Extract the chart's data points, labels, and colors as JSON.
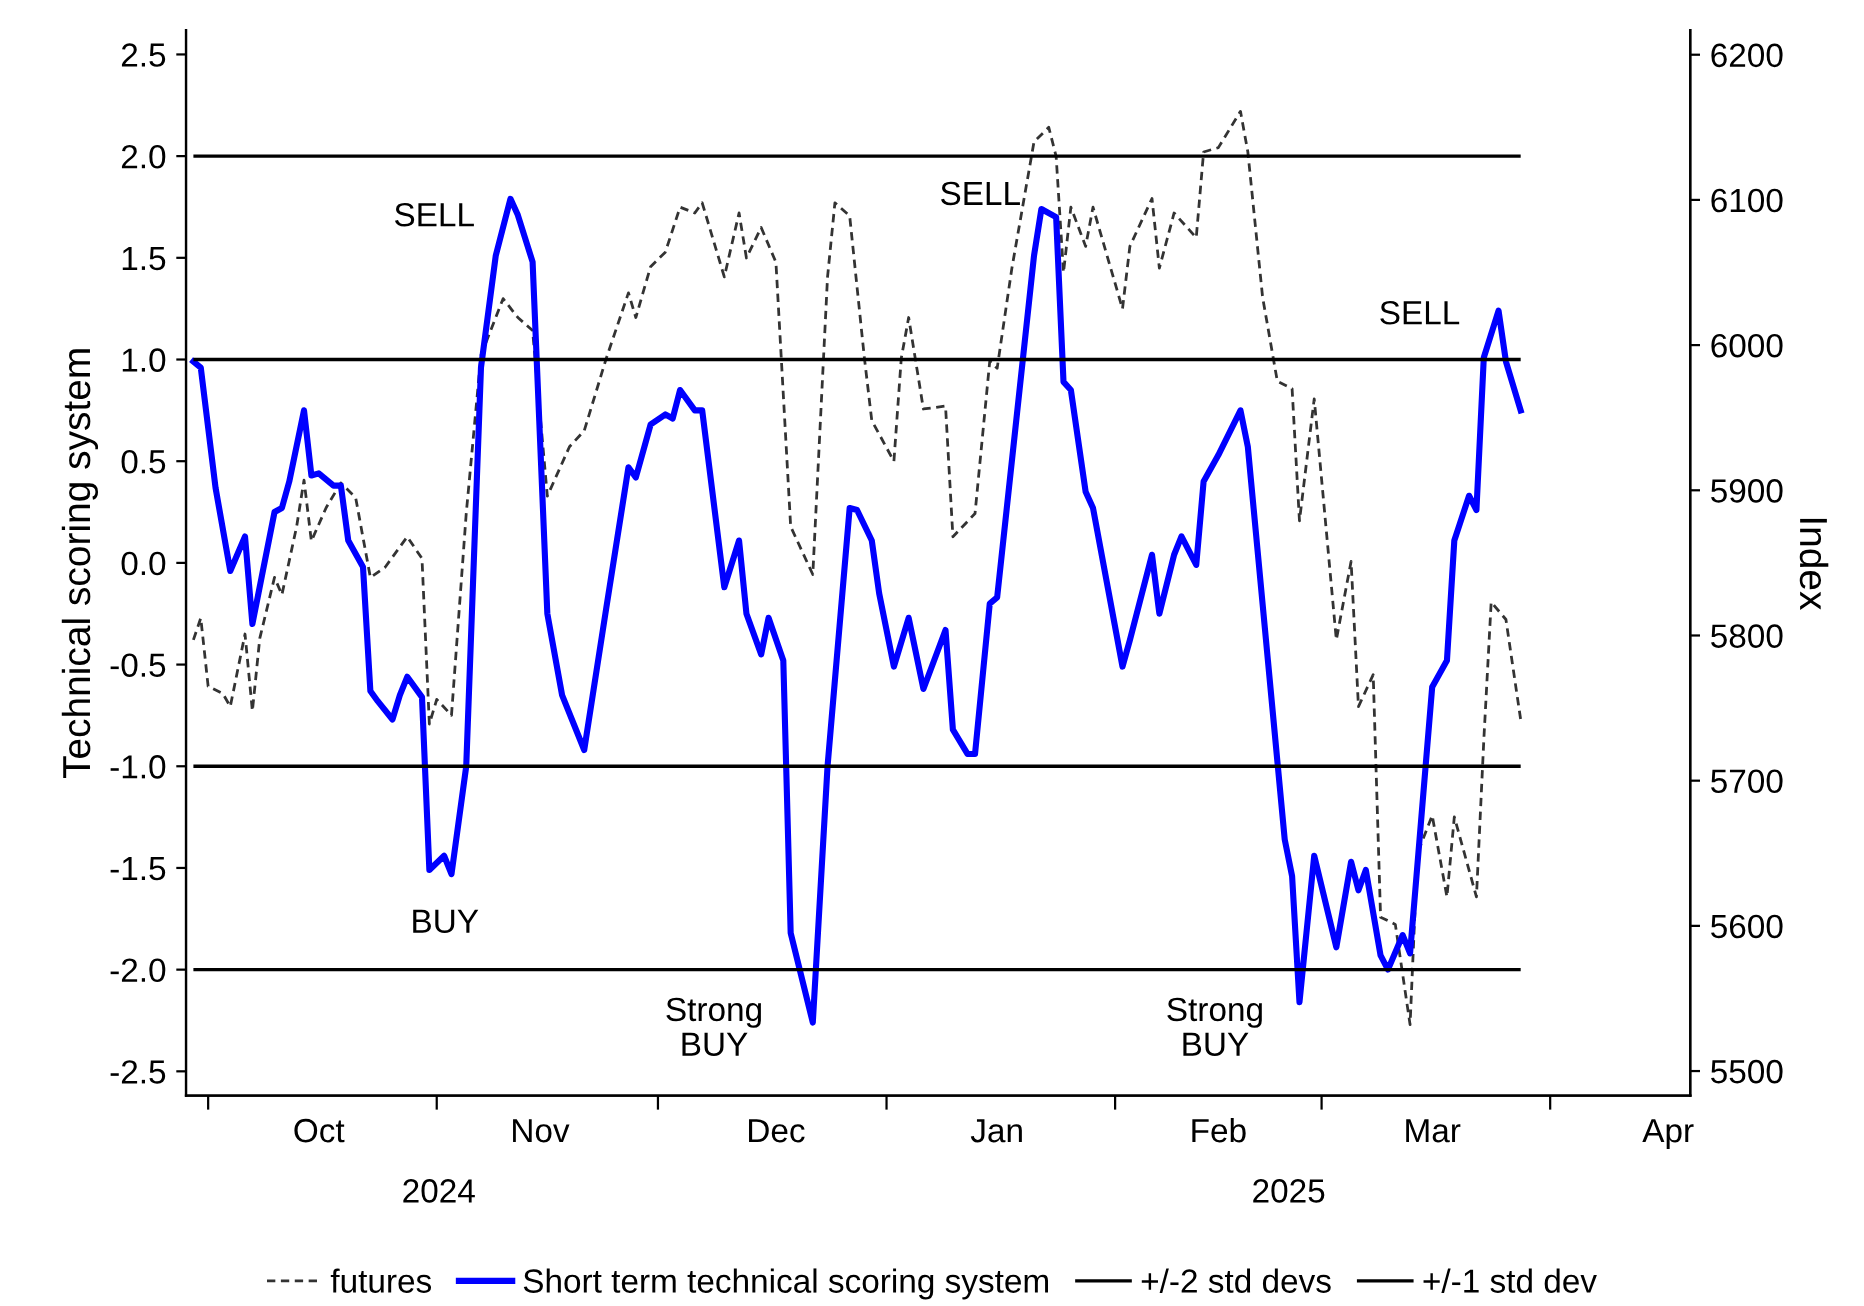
{
  "chart_data": {
    "type": "line",
    "ylabel": "Technical scoring system",
    "y2label": "Index",
    "ylim": [
      -2.62,
      2.62
    ],
    "yticks": [
      {
        "value": -2.5,
        "label": "-2.5"
      },
      {
        "value": -2,
        "label": "-2.0"
      },
      {
        "value": -1.5,
        "label": "-1.5"
      },
      {
        "value": -1,
        "label": "-1.0"
      },
      {
        "value": -0.5,
        "label": "-0.5"
      },
      {
        "value": 0,
        "label": "0.0"
      },
      0.5,
      {
        "value": 1,
        "label": "1.0"
      },
      1.5,
      {
        "value": 2,
        "label": "2.0"
      },
      2.5
    ],
    "y2lim": [
      5483,
      6217
    ],
    "y2ticks": [
      5500,
      5600,
      5700,
      5800,
      5900,
      6000,
      6100,
      6200
    ],
    "xlim": [
      "2024-09-28",
      "2025-04-20"
    ],
    "xticks": [
      {
        "value": "2024-10-01",
        "label": null
      },
      {
        "value": "2024-11-01",
        "label": null
      },
      {
        "value": "2024-12-01",
        "label": null
      },
      {
        "value": "2025-01-01",
        "label": null
      },
      {
        "value": "2025-02-01",
        "label": null
      },
      {
        "value": "2025-03-01",
        "label": null
      },
      {
        "value": "2025-04-01",
        "label": null
      },
      {
        "value": "2024-10-16",
        "label": "Oct"
      },
      {
        "value": "2024-11-15",
        "label": "Nov"
      },
      {
        "value": "2024-12-17",
        "label": "Dec"
      },
      {
        "value": "2025-01-16",
        "label": "Jan"
      },
      {
        "value": "2025-02-15",
        "label": "Feb"
      },
      {
        "value": "2025-03-16",
        "label": "Mar"
      },
      {
        "value": "2025-04-17",
        "label": "Apr"
      }
    ],
    "grid": false,
    "legend": "bottom",
    "marker": "none",
    "series": [
      {
        "name": "futures",
        "color": "#333333",
        "axis": "y2",
        "line_style": "dashed",
        "x": [
          "2024-09-29",
          "2024-09-30",
          "2024-10-01",
          "2024-10-03",
          "2024-10-04",
          "2024-10-06",
          "2024-10-07",
          "2024-10-08",
          "2024-10-10",
          "2024-10-11",
          "2024-10-13",
          "2024-10-14",
          "2024-10-15",
          "2024-10-17",
          "2024-10-19",
          "2024-10-21",
          "2024-10-23",
          "2024-10-25",
          "2024-10-28",
          "2024-10-30",
          "2024-10-31",
          "2024-11-01",
          "2024-11-03",
          "2024-11-05",
          "2024-11-07",
          "2024-11-10",
          "2024-11-12",
          "2024-11-14",
          "2024-11-16",
          "2024-11-19",
          "2024-11-21",
          "2024-11-24",
          "2024-11-27",
          "2024-11-28",
          "2024-11-30",
          "2024-12-02",
          "2024-12-04",
          "2024-12-06",
          "2024-12-07",
          "2024-12-10",
          "2024-12-12",
          "2024-12-13",
          "2024-12-15",
          "2024-12-17",
          "2024-12-19",
          "2024-12-22",
          "2024-12-24",
          "2024-12-25",
          "2024-12-27",
          "2024-12-29",
          "2024-12-30",
          "2025-01-02",
          "2025-01-03",
          "2025-01-04",
          "2025-01-06",
          "2025-01-09",
          "2025-01-10",
          "2025-01-13",
          "2025-01-15",
          "2025-01-16",
          "2025-01-18",
          "2025-01-21",
          "2025-01-23",
          "2025-01-24",
          "2025-01-25",
          "2025-01-26",
          "2025-01-28",
          "2025-01-29",
          "2025-02-02",
          "2025-02-03",
          "2025-02-06",
          "2025-02-07",
          "2025-02-09",
          "2025-02-12",
          "2025-02-13",
          "2025-02-15",
          "2025-02-18",
          "2025-02-19",
          "2025-02-21",
          "2025-02-23",
          "2025-02-25",
          "2025-02-26",
          "2025-02-28",
          "2025-03-03",
          "2025-03-05",
          "2025-03-06",
          "2025-03-08",
          "2025-03-09",
          "2025-03-11",
          "2025-03-13",
          "2025-03-14",
          "2025-03-16",
          "2025-03-18",
          "2025-03-19",
          "2025-03-22",
          "2025-03-23",
          "2025-03-24",
          "2025-03-26",
          "2025-03-28"
        ],
        "values": [
          5797,
          5812,
          5765,
          5760,
          5751,
          5801,
          5748,
          5798,
          5840,
          5828,
          5875,
          5907,
          5865,
          5888,
          5905,
          5895,
          5840,
          5847,
          5868,
          5853,
          5739,
          5756,
          5745,
          5884,
          5993,
          6032,
          6019,
          6010,
          5896,
          5930,
          5941,
          5991,
          6036,
          6019,
          6054,
          6064,
          6095,
          6091,
          6098,
          6047,
          6091,
          6060,
          6081,
          6057,
          5875,
          5842,
          6047,
          6098,
          6089,
          5991,
          5948,
          5920,
          5991,
          6019,
          5956,
          5958,
          5868,
          5884,
          5989,
          5984,
          6053,
          6140,
          6150,
          6130,
          6050,
          6095,
          6068,
          6095,
          6025,
          6068,
          6101,
          6053,
          6091,
          6074,
          6133,
          6136,
          6161,
          6133,
          6033,
          5975,
          5970,
          5879,
          5963,
          5797,
          5851,
          5751,
          5773,
          5606,
          5601,
          5532,
          5650,
          5676,
          5620,
          5675,
          5620,
          5728,
          5823,
          5811,
          5742
        ]
      },
      {
        "name": "Short term technical scoring system",
        "color": "#0000ff",
        "line_style": "solid",
        "x": [
          "2024-09-29",
          "2024-09-30",
          "2024-10-02",
          "2024-10-04",
          "2024-10-06",
          "2024-10-07",
          "2024-10-10",
          "2024-10-11",
          "2024-10-12",
          "2024-10-14",
          "2024-10-15",
          "2024-10-16",
          "2024-10-18",
          "2024-10-19",
          "2024-10-20",
          "2024-10-22",
          "2024-10-23",
          "2024-10-24",
          "2024-10-26",
          "2024-10-27",
          "2024-10-28",
          "2024-10-30",
          "2024-10-31",
          "2024-11-02",
          "2024-11-03",
          "2024-11-05",
          "2024-11-07",
          "2024-11-09",
          "2024-11-11",
          "2024-11-12",
          "2024-11-14",
          "2024-11-16",
          "2024-11-18",
          "2024-11-21",
          "2024-11-24",
          "2024-11-27",
          "2024-11-28",
          "2024-11-30",
          "2024-12-02",
          "2024-12-03",
          "2024-12-04",
          "2024-12-06",
          "2024-12-07",
          "2024-12-10",
          "2024-12-12",
          "2024-12-13",
          "2024-12-15",
          "2024-12-16",
          "2024-12-18",
          "2024-12-19",
          "2024-12-22",
          "2024-12-24",
          "2024-12-27",
          "2024-12-28",
          "2024-12-30",
          "2024-12-31",
          "2025-01-02",
          "2025-01-04",
          "2025-01-06",
          "2025-01-09",
          "2025-01-10",
          "2025-01-12",
          "2025-01-13",
          "2025-01-15",
          "2025-01-16",
          "2025-01-21",
          "2025-01-22",
          "2025-01-24",
          "2025-01-25",
          "2025-01-26",
          "2025-01-28",
          "2025-01-29",
          "2025-02-02",
          "2025-02-03",
          "2025-02-06",
          "2025-02-07",
          "2025-02-09",
          "2025-02-10",
          "2025-02-12",
          "2025-02-13",
          "2025-02-15",
          "2025-02-18",
          "2025-02-19",
          "2025-02-24",
          "2025-02-25",
          "2025-02-26",
          "2025-02-28",
          "2025-03-03",
          "2025-03-05",
          "2025-03-06",
          "2025-03-07",
          "2025-03-09",
          "2025-03-10",
          "2025-03-12",
          "2025-03-13",
          "2025-03-16",
          "2025-03-18",
          "2025-03-19",
          "2025-03-21",
          "2025-03-22",
          "2025-03-23",
          "2025-03-25",
          "2025-03-26",
          "2025-03-28"
        ],
        "values": [
          0.99,
          0.96,
          0.37,
          -0.04,
          0.13,
          -0.3,
          0.25,
          0.27,
          0.4,
          0.75,
          0.43,
          0.44,
          0.38,
          0.38,
          0.11,
          -0.02,
          -0.63,
          -0.68,
          -0.77,
          -0.65,
          -0.56,
          -0.66,
          -1.51,
          -1.44,
          -1.53,
          -1.0,
          0.96,
          1.51,
          1.79,
          1.71,
          1.48,
          -0.25,
          -0.65,
          -0.92,
          -0.22,
          0.47,
          0.42,
          0.68,
          0.73,
          0.71,
          0.85,
          0.75,
          0.75,
          -0.12,
          0.11,
          -0.25,
          -0.45,
          -0.27,
          -0.48,
          -1.82,
          -2.26,
          -1.0,
          0.27,
          0.26,
          0.11,
          -0.15,
          -0.51,
          -0.27,
          -0.62,
          -0.33,
          -0.82,
          -0.94,
          -0.94,
          -0.2,
          -0.17,
          1.51,
          1.74,
          1.7,
          0.89,
          0.85,
          0.35,
          0.27,
          -0.51,
          -0.38,
          0.04,
          -0.25,
          0.04,
          0.13,
          -0.01,
          0.4,
          0.53,
          0.75,
          0.57,
          -1.36,
          -1.54,
          -2.16,
          -1.44,
          -1.89,
          -1.47,
          -1.61,
          -1.51,
          -1.93,
          -2.0,
          -1.83,
          -1.92,
          -0.61,
          -0.48,
          0.11,
          0.33,
          0.26,
          1.01,
          1.24,
          0.99,
          0.75
        ]
      }
    ],
    "ref_lines": [
      {
        "axis": "y",
        "value": 2,
        "label": "+/-2 std devs",
        "color": "#000000",
        "line_style": "solid"
      },
      {
        "axis": "y",
        "value": -2,
        "color": "#000000",
        "line_style": "solid"
      },
      {
        "axis": "y",
        "value": 1,
        "label": "+/-1 std dev",
        "color": "#000000",
        "line_style": "solid"
      },
      {
        "axis": "y",
        "value": -1,
        "color": "#000000",
        "line_style": "solid"
      }
    ],
    "annotations": [
      "SELL",
      "BUY",
      "Strong\nBUY",
      "SELL",
      "Strong\nBUY",
      "SELL",
      "2024",
      "2025"
    ]
  }
}
